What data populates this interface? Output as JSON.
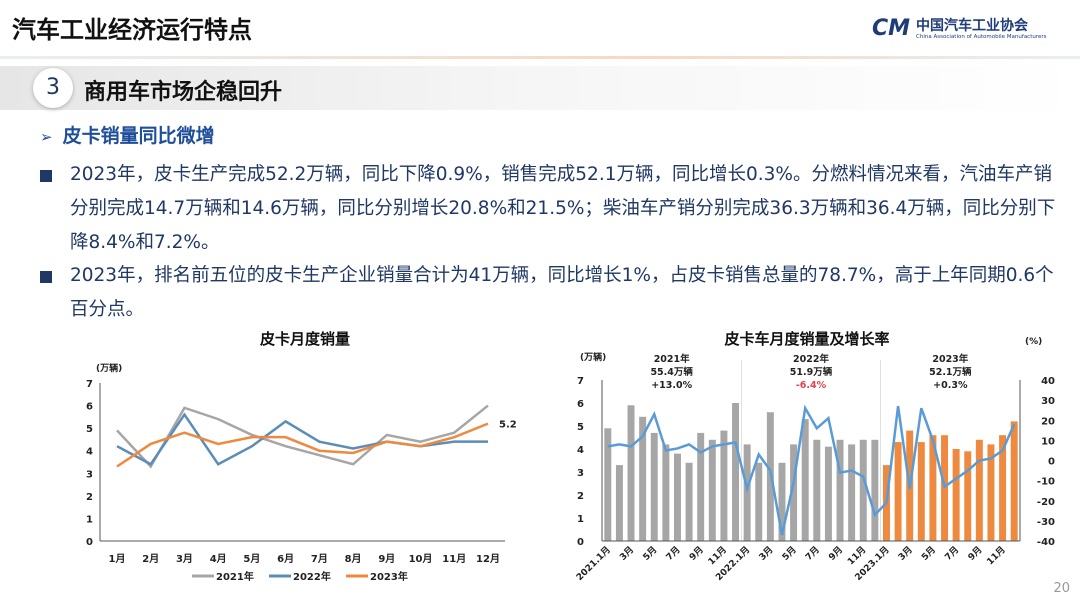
{
  "header": {
    "title": "汽车工业经济运行特点",
    "logo_cn": "中国汽车工业协会",
    "logo_en": "China Association of Automobile Manufacturers",
    "logo_mark": "CM"
  },
  "section": {
    "number": "3",
    "title": "商用车市场企稳回升"
  },
  "subheading": {
    "arrow": "➢",
    "text": "皮卡销量同比微增"
  },
  "bullets": [
    "2023年，皮卡生产完成52.2万辆，同比下降0.9%，销售完成52.1万辆，同比增长0.3%。分燃料情况来看，汽油车产销分别完成14.7万辆和14.6万辆，同比分别增长20.8%和21.5%；柴油车产销分别完成36.3万辆和36.4万辆，同比分别下降8.4%和7.2%。",
    "2023年，排名前五位的皮卡生产企业销量合计为41万辆，同比增长1%，占皮卡销售总量的78.7%，高于上年同期0.6个百分点。"
  ],
  "page_number": "20",
  "chart_data": [
    {
      "type": "line",
      "title": "皮卡月度销量",
      "ylabel": "(万辆)",
      "ylim": [
        0,
        7
      ],
      "yticks": [
        "0",
        "1",
        "2",
        "3",
        "4",
        "5",
        "6",
        "7"
      ],
      "grid": false,
      "legend": "bottom",
      "categories": [
        "1月",
        "2月",
        "3月",
        "4月",
        "5月",
        "6月",
        "7月",
        "8月",
        "9月",
        "10月",
        "11月",
        "12月"
      ],
      "series": [
        {
          "name": "2021年",
          "color": "#a6a6a6",
          "values": [
            4.9,
            3.3,
            5.9,
            5.4,
            4.7,
            4.2,
            3.8,
            3.4,
            4.7,
            4.4,
            4.8,
            6.0
          ]
        },
        {
          "name": "2022年",
          "color": "#5b8db8",
          "values": [
            4.2,
            3.4,
            5.6,
            3.4,
            4.2,
            5.3,
            4.4,
            4.1,
            4.4,
            4.2,
            4.4,
            4.4
          ]
        },
        {
          "name": "2023年",
          "color": "#ed8a3f",
          "values": [
            3.3,
            4.3,
            4.8,
            4.3,
            4.6,
            4.6,
            4.0,
            3.9,
            4.4,
            4.2,
            4.6,
            5.2
          ]
        }
      ],
      "annotations": [
        "5.2"
      ]
    },
    {
      "type": "bar+line",
      "title": "皮卡车月度销量及增长率",
      "ylabel": "(万辆)",
      "y2label": "(%)",
      "ylim": [
        0,
        7
      ],
      "y2lim": [
        -40,
        40
      ],
      "yticks": [
        "0",
        "1",
        "2",
        "3",
        "4",
        "5",
        "6",
        "7"
      ],
      "y2ticks": [
        "-40",
        "-30",
        "-20",
        "-10",
        "0",
        "10",
        "20",
        "30",
        "40"
      ],
      "grid": false,
      "xticks": [
        "2021.1月",
        "3月",
        "5月",
        "7月",
        "9月",
        "11月",
        "2022.1月",
        "3月",
        "5月",
        "7月",
        "9月",
        "11月",
        "2023.1月",
        "3月",
        "5月",
        "7月",
        "9月",
        "11月"
      ],
      "bars": [
        4.9,
        3.3,
        5.9,
        5.4,
        4.7,
        4.2,
        3.8,
        3.4,
        4.7,
        4.4,
        4.8,
        6.0,
        4.2,
        3.4,
        5.6,
        3.4,
        4.2,
        5.3,
        4.4,
        4.1,
        4.4,
        4.2,
        4.4,
        4.4,
        3.3,
        4.3,
        4.8,
        4.3,
        4.6,
        4.6,
        4.0,
        3.9,
        4.4,
        4.2,
        4.6,
        5.2
      ],
      "growth": [
        7,
        8,
        7,
        12,
        23,
        5,
        6,
        8,
        4,
        7,
        8,
        9,
        -14,
        3,
        -5,
        -37,
        -11,
        26,
        16,
        21,
        -6,
        -5,
        -8,
        -27,
        -21,
        27,
        -14,
        26,
        10,
        -13,
        -9,
        -5,
        0,
        1,
        5,
        18
      ],
      "colors": {
        "bar_2021_2022": "#a6a6a6",
        "bar_2023": "#ed8a3f",
        "growth_line": "#5b9bd5",
        "negative_text": "#e0424b"
      },
      "year_labels": [
        {
          "year": "2021年",
          "total": "55.4万辆",
          "growth": "+13.0%"
        },
        {
          "year": "2022年",
          "total": "51.9万辆",
          "growth": "-6.4%"
        },
        {
          "year": "2023年",
          "total": "52.1万辆",
          "growth": "+0.3%"
        }
      ]
    }
  ]
}
